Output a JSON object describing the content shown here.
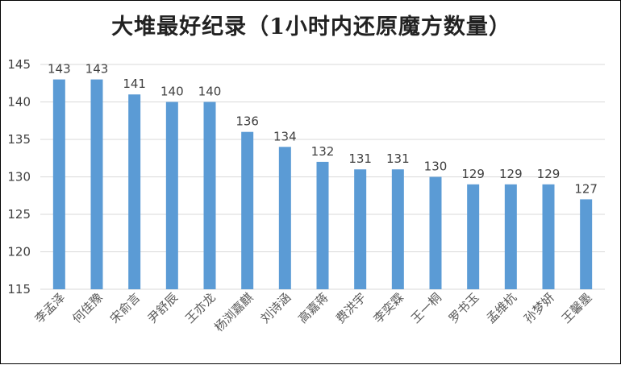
{
  "chart_data": {
    "type": "bar",
    "title": "大堆最好纪录（1小时内还原魔方数量）",
    "xlabel": "",
    "ylabel": "",
    "categories": [
      "李孟泽",
      "何佳豫",
      "宋俞言",
      "尹舒辰",
      "王亦龙",
      "杨浏嘉麒",
      "刘诗涵",
      "高嘉蒋",
      "费洪宇",
      "李奕霖",
      "王一桐",
      "罗书玉",
      "孟维杭",
      "孙梦妍",
      "王馨墨"
    ],
    "values": [
      143,
      143,
      141,
      140,
      140,
      136,
      134,
      132,
      131,
      131,
      130,
      129,
      129,
      129,
      127
    ],
    "ylim": [
      115,
      145
    ],
    "yticks": [
      115,
      120,
      125,
      130,
      135,
      140,
      145
    ],
    "grid": true,
    "legend": "none",
    "bar_color": "#5B9BD5",
    "grid_color": "#D9D9D9"
  }
}
